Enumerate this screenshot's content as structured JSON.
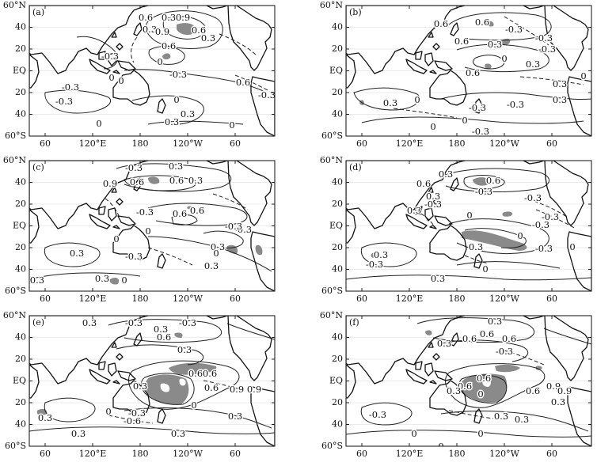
{
  "figure": {
    "lat_ticks": [
      "60°N",
      "40",
      "20",
      "EQ",
      "20",
      "40",
      "60°S"
    ],
    "lon_ticks": [
      "60",
      "120°E",
      "180",
      "120°W",
      "60"
    ],
    "colors": {
      "frame": "#222222",
      "contour": "#222222",
      "land": "#111111",
      "shade": "#8a8a8a",
      "grid": "#d8d8d8"
    },
    "panels": [
      {
        "label": "(a)",
        "contour_labels": [
          "0.6",
          "0.3",
          "0.9",
          "0.3",
          "0.9",
          "0.6",
          "0.3",
          "0.6",
          "-0.3",
          "0",
          "0",
          "0",
          "-0.3",
          "-0.3",
          "0.6",
          "0",
          "0.3",
          "0",
          "-0.3",
          "0.3",
          "-0.3",
          "0"
        ]
      },
      {
        "label": "(b)",
        "contour_labels": [
          "0.6",
          "0.6",
          "-0.3",
          "0.6",
          "0.3",
          "-0.3",
          "-0.3",
          "0.3",
          "0",
          "0.6",
          "0",
          "0.3",
          "0.3",
          "0",
          "-0.3",
          "-0.3",
          "0",
          "-0.3",
          "0.3",
          "0"
        ]
      },
      {
        "label": "(c)",
        "contour_labels": [
          "-0.3",
          "0.3",
          "0.9",
          "0.6",
          "0.6",
          "0.3",
          "0.6",
          "-0.3",
          "-0.3",
          "0.3",
          "0.6",
          "0",
          "0.3",
          "-0.3",
          "0",
          "0.3",
          "-0.3",
          "0.3",
          "0",
          "-0.3",
          "0"
        ]
      },
      {
        "label": "(d)",
        "contour_labels": [
          "0.3",
          "0.6",
          "-0.3",
          "0.6",
          "0.3",
          "-0.3",
          "0.3",
          "-0.3",
          "-0.3",
          "0",
          "-0.3",
          "0",
          "0.3",
          "0.3",
          "-0.3",
          "0",
          "-0.3",
          "0.3",
          "0"
        ]
      },
      {
        "label": "(e)",
        "contour_labels": [
          "0.3",
          "-0.3",
          "-0.3",
          "0.3",
          "0.6",
          "0.3",
          "0.6",
          "0.6",
          "0.9",
          "0.9",
          "0.3",
          "0.6",
          "0.3",
          "0",
          "-0.3",
          "0.3",
          "-0.6",
          "0.3",
          "0.3",
          "0"
        ]
      },
      {
        "label": "(f)",
        "contour_labels": [
          "0.3",
          "0.6",
          "0.6",
          "0.6",
          "0.3",
          "-0.3",
          "0.6",
          "0.6",
          "0.9",
          "0.9",
          "0.6",
          "0.3",
          "0",
          "0.3",
          "-0.3",
          "0.3",
          "0.3",
          "0",
          "0",
          "0"
        ]
      }
    ]
  }
}
